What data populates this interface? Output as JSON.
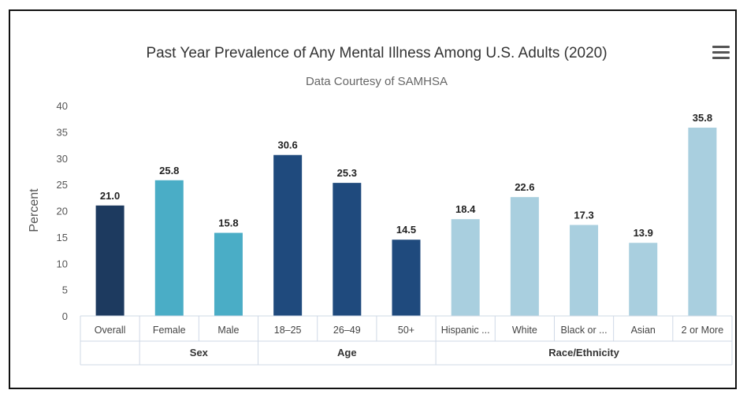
{
  "chart_data": {
    "type": "bar",
    "title": "Past Year Prevalence of Any Mental Illness Among U.S. Adults (2020)",
    "subtitle": "Data Courtesy of SAMHSA",
    "ylabel": "Percent",
    "ylim": [
      0,
      40
    ],
    "yticks": [
      0,
      5,
      10,
      15,
      20,
      25,
      30,
      35,
      40
    ],
    "categories": [
      "Overall",
      "Female",
      "Male",
      "18–25",
      "26–49",
      "50+",
      "Hispanic ...",
      "White",
      "Black or ...",
      "Asian",
      "2 or More"
    ],
    "values": [
      21.0,
      25.8,
      15.8,
      30.6,
      25.3,
      14.5,
      18.4,
      22.6,
      17.3,
      13.9,
      35.8
    ],
    "value_labels": [
      "21.0",
      "25.8",
      "15.8",
      "30.6",
      "25.3",
      "14.5",
      "18.4",
      "22.6",
      "17.3",
      "13.9",
      "35.8"
    ],
    "bar_colors": [
      "#1d3a5f",
      "#4aadc6",
      "#4aadc6",
      "#1f4a7d",
      "#1f4a7d",
      "#1f4a7d",
      "#a9cfdf",
      "#a9cfdf",
      "#a9cfdf",
      "#a9cfdf",
      "#a9cfdf"
    ],
    "groups": [
      {
        "label": "",
        "start": 0,
        "end": 0
      },
      {
        "label": "Sex",
        "start": 1,
        "end": 2
      },
      {
        "label": "Age",
        "start": 3,
        "end": 5
      },
      {
        "label": "Race/Ethnicity",
        "start": 6,
        "end": 10
      }
    ],
    "grid": false,
    "legend": "none"
  },
  "menu": {
    "icon": "hamburger-menu-icon"
  }
}
